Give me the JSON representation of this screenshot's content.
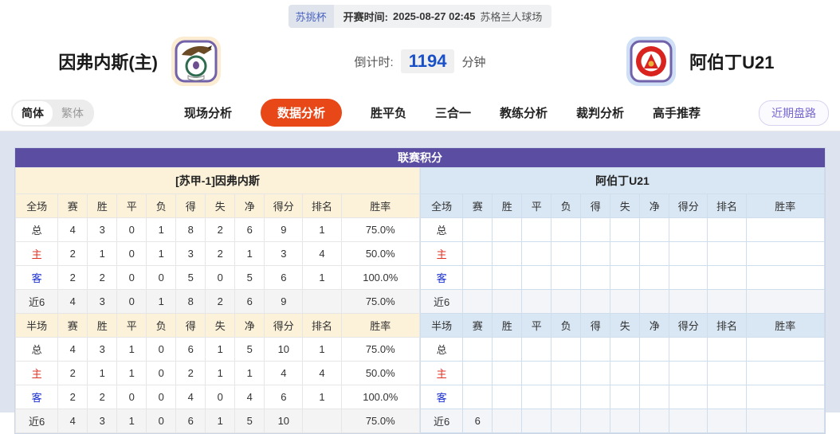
{
  "top_bar": {
    "league": "苏挑杯",
    "kickoff_label": "开赛时间:",
    "kickoff_time": "2025-08-27 02:45",
    "venue": "苏格兰人球场"
  },
  "header": {
    "home_team": "因弗内斯(主)",
    "away_team": "阿伯丁U21",
    "countdown_label": "倒计时:",
    "countdown_value": "1194",
    "countdown_unit": "分钟",
    "home_logo": "inverness-crest-icon",
    "away_logo": "aberdeen-crest-icon"
  },
  "nav": {
    "lang_simplified": "简体",
    "lang_traditional": "繁体",
    "items": [
      {
        "label": "现场分析",
        "active": false
      },
      {
        "label": "数据分析",
        "active": true
      },
      {
        "label": "胜平负",
        "active": false
      },
      {
        "label": "三合一",
        "active": false
      },
      {
        "label": "教练分析",
        "active": false
      },
      {
        "label": "裁判分析",
        "active": false
      },
      {
        "label": "高手推荐",
        "active": false
      }
    ],
    "recent_button": "近期盘路"
  },
  "colors": {
    "accent_nav_active": "#e84717",
    "title_bar": "#5b4ea2",
    "left_section_bg": "#fcf2da",
    "right_section_bg": "#d9e6f3",
    "home_label": "#e03224",
    "away_label": "#1a2fd0",
    "countdown_number": "#1950c8"
  },
  "table": {
    "title": "联赛积分",
    "column_widths_percent": [
      10.5,
      7.3,
      7.3,
      7.3,
      7.3,
      7.3,
      7.3,
      7.3,
      9.5,
      9.5,
      19.4
    ],
    "left": {
      "team_header": "[苏甲-1]因弗内斯",
      "full_columns": [
        "全场",
        "赛",
        "胜",
        "平",
        "负",
        "得",
        "失",
        "净",
        "得分",
        "排名",
        "胜率"
      ],
      "full_rows": [
        {
          "label": "总",
          "type": "total",
          "cells": [
            "4",
            "3",
            "0",
            "1",
            "8",
            "2",
            "6",
            "9",
            "1",
            "75.0%"
          ]
        },
        {
          "label": "主",
          "type": "home",
          "cells": [
            "2",
            "1",
            "0",
            "1",
            "3",
            "2",
            "1",
            "3",
            "4",
            "50.0%"
          ]
        },
        {
          "label": "客",
          "type": "away",
          "cells": [
            "2",
            "2",
            "0",
            "0",
            "5",
            "0",
            "5",
            "6",
            "1",
            "100.0%"
          ]
        },
        {
          "label": "近6",
          "type": "recent",
          "cells": [
            "4",
            "3",
            "0",
            "1",
            "8",
            "2",
            "6",
            "9",
            "",
            "75.0%"
          ]
        }
      ],
      "half_columns": [
        "半场",
        "赛",
        "胜",
        "平",
        "负",
        "得",
        "失",
        "净",
        "得分",
        "排名",
        "胜率"
      ],
      "half_rows": [
        {
          "label": "总",
          "type": "total",
          "cells": [
            "4",
            "3",
            "1",
            "0",
            "6",
            "1",
            "5",
            "10",
            "1",
            "75.0%"
          ]
        },
        {
          "label": "主",
          "type": "home",
          "cells": [
            "2",
            "1",
            "1",
            "0",
            "2",
            "1",
            "1",
            "4",
            "4",
            "50.0%"
          ]
        },
        {
          "label": "客",
          "type": "away",
          "cells": [
            "2",
            "2",
            "0",
            "0",
            "4",
            "0",
            "4",
            "6",
            "1",
            "100.0%"
          ]
        },
        {
          "label": "近6",
          "type": "recent",
          "cells": [
            "4",
            "3",
            "1",
            "0",
            "6",
            "1",
            "5",
            "10",
            "",
            "75.0%"
          ]
        }
      ]
    },
    "right": {
      "team_header": "阿伯丁U21",
      "full_columns": [
        "全场",
        "赛",
        "胜",
        "平",
        "负",
        "得",
        "失",
        "净",
        "得分",
        "排名",
        "胜率"
      ],
      "full_rows": [
        {
          "label": "总",
          "type": "total",
          "cells": [
            "",
            "",
            "",
            "",
            "",
            "",
            "",
            "",
            "",
            ""
          ]
        },
        {
          "label": "主",
          "type": "home",
          "cells": [
            "",
            "",
            "",
            "",
            "",
            "",
            "",
            "",
            "",
            ""
          ]
        },
        {
          "label": "客",
          "type": "away",
          "cells": [
            "",
            "",
            "",
            "",
            "",
            "",
            "",
            "",
            "",
            ""
          ]
        },
        {
          "label": "近6",
          "type": "recent",
          "cells": [
            "",
            "",
            "",
            "",
            "",
            "",
            "",
            "",
            "",
            ""
          ]
        }
      ],
      "half_columns": [
        "半场",
        "赛",
        "胜",
        "平",
        "负",
        "得",
        "失",
        "净",
        "得分",
        "排名",
        "胜率"
      ],
      "half_rows": [
        {
          "label": "总",
          "type": "total",
          "cells": [
            "",
            "",
            "",
            "",
            "",
            "",
            "",
            "",
            "",
            ""
          ]
        },
        {
          "label": "主",
          "type": "home",
          "cells": [
            "",
            "",
            "",
            "",
            "",
            "",
            "",
            "",
            "",
            ""
          ]
        },
        {
          "label": "客",
          "type": "away",
          "cells": [
            "",
            "",
            "",
            "",
            "",
            "",
            "",
            "",
            "",
            ""
          ]
        },
        {
          "label": "近6",
          "type": "recent",
          "cells": [
            "6",
            "",
            "",
            "",
            "",
            "",
            "",
            "",
            "",
            ""
          ]
        }
      ]
    }
  }
}
